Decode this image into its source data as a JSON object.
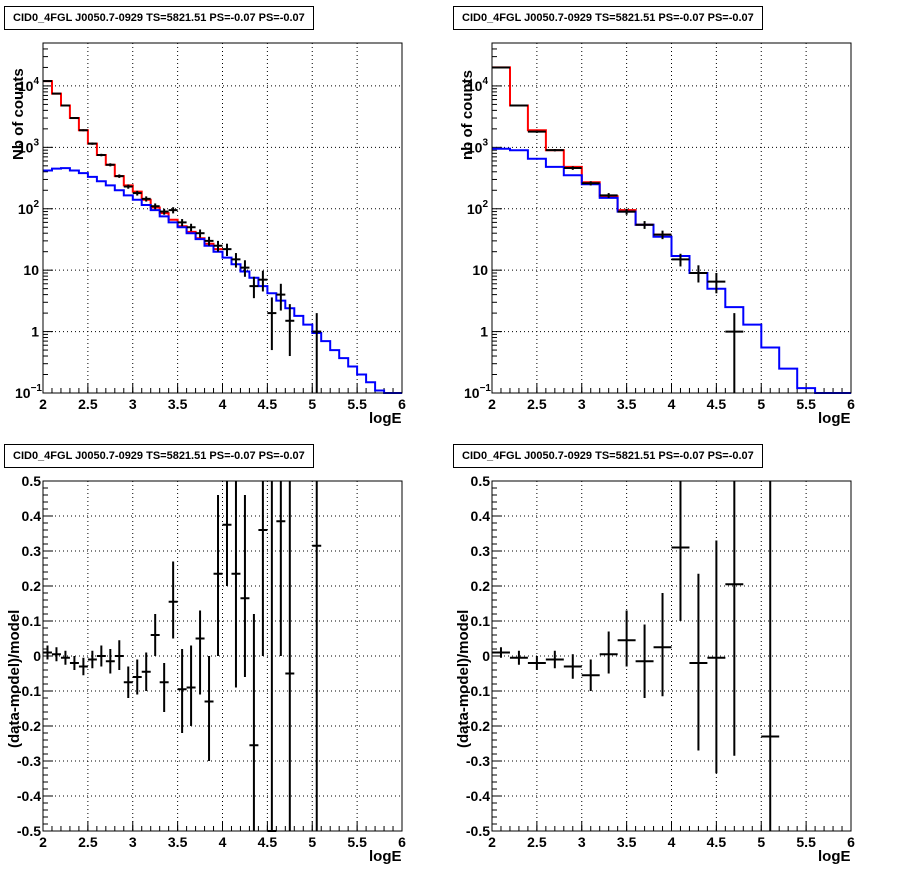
{
  "chart_data": [
    {
      "type": "histogram",
      "title": "CID0_4FGL J0050.7-0929 TS=5821.51 PS=-0.07 PS=-0.07",
      "xlabel": "logE",
      "ylabel": "Nb of counts",
      "xlim": [
        2,
        6
      ],
      "ylim": [
        0.1,
        50000
      ],
      "yscale": "log",
      "grid": true,
      "x_ticks": [
        "2",
        "2.5",
        "3",
        "3.5",
        "4",
        "4.5",
        "5",
        "5.5",
        "6"
      ],
      "y_ticks": [
        {
          "value": 0.1,
          "mantissa": "10",
          "exp": "−1"
        },
        {
          "value": 1,
          "mantissa": "1",
          "exp": ""
        },
        {
          "value": 10,
          "mantissa": "10",
          "exp": ""
        },
        {
          "value": 100,
          "mantissa": "10",
          "exp": "2"
        },
        {
          "value": 1000,
          "mantissa": "10",
          "exp": "3"
        },
        {
          "value": 10000,
          "mantissa": "10",
          "exp": "4"
        }
      ],
      "bin_edges": [
        2.0,
        2.1,
        2.2,
        2.3,
        2.4,
        2.5,
        2.6,
        2.7,
        2.8,
        2.9,
        3.0,
        3.1,
        3.2,
        3.3,
        3.4,
        3.5,
        3.6,
        3.7,
        3.8,
        3.9,
        4.0,
        4.1,
        4.2,
        4.3,
        4.4,
        4.5,
        4.6,
        4.7,
        4.8,
        4.9,
        5.0,
        5.1,
        5.2,
        5.3,
        5.4,
        5.5,
        5.6,
        5.7,
        5.8,
        5.9,
        6.0
      ],
      "series": [
        {
          "color": "#ff0000",
          "values": [
            12000,
            7500,
            4800,
            3000,
            1900,
            1150,
            750,
            520,
            340,
            240,
            190,
            140,
            105,
            85,
            66,
            52,
            42,
            33,
            27,
            22
          ]
        },
        {
          "color": "#0000ff",
          "values": [
            420,
            450,
            460,
            420,
            380,
            330,
            280,
            240,
            200,
            165,
            140,
            115,
            95,
            75,
            60,
            50,
            40,
            32,
            25,
            20,
            16,
            12.5,
            9.5,
            7.5,
            5.5,
            4.2,
            3.2,
            2.4,
            1.8,
            1.3,
            0.95,
            0.7,
            0.5,
            0.37,
            0.27,
            0.2,
            0.15,
            0.11,
            0.1,
            0.1
          ]
        }
      ],
      "points": [
        {
          "x": 2.05,
          "y": 12000,
          "lo": 11800,
          "hi": 12200
        },
        {
          "x": 2.15,
          "y": 7500,
          "lo": 7350,
          "hi": 7650
        },
        {
          "x": 2.25,
          "y": 4800,
          "lo": 4680,
          "hi": 4920
        },
        {
          "x": 2.35,
          "y": 3000,
          "lo": 2900,
          "hi": 3100
        },
        {
          "x": 2.45,
          "y": 1900,
          "lo": 1830,
          "hi": 1970
        },
        {
          "x": 2.55,
          "y": 1150,
          "lo": 1100,
          "hi": 1200
        },
        {
          "x": 2.65,
          "y": 750,
          "lo": 715,
          "hi": 785
        },
        {
          "x": 2.75,
          "y": 520,
          "lo": 490,
          "hi": 550
        },
        {
          "x": 2.85,
          "y": 340,
          "lo": 318,
          "hi": 362
        },
        {
          "x": 2.95,
          "y": 230,
          "lo": 212,
          "hi": 248
        },
        {
          "x": 3.05,
          "y": 180,
          "lo": 164,
          "hi": 196
        },
        {
          "x": 3.15,
          "y": 145,
          "lo": 131,
          "hi": 159
        },
        {
          "x": 3.25,
          "y": 110,
          "lo": 98,
          "hi": 122
        },
        {
          "x": 3.35,
          "y": 90,
          "lo": 80,
          "hi": 100
        },
        {
          "x": 3.45,
          "y": 95,
          "lo": 84,
          "hi": 106
        },
        {
          "x": 3.55,
          "y": 60,
          "lo": 52,
          "hi": 68
        },
        {
          "x": 3.65,
          "y": 50,
          "lo": 43,
          "hi": 57
        },
        {
          "x": 3.75,
          "y": 40,
          "lo": 34,
          "hi": 46
        },
        {
          "x": 3.85,
          "y": 30,
          "lo": 25,
          "hi": 35
        },
        {
          "x": 3.95,
          "y": 25,
          "lo": 20,
          "hi": 30
        },
        {
          "x": 4.05,
          "y": 22,
          "lo": 17,
          "hi": 27
        },
        {
          "x": 4.15,
          "y": 15,
          "lo": 11,
          "hi": 19
        },
        {
          "x": 4.25,
          "y": 11,
          "lo": 7.8,
          "hi": 14.5
        },
        {
          "x": 4.35,
          "y": 5.5,
          "lo": 3.5,
          "hi": 7.8
        },
        {
          "x": 4.45,
          "y": 7,
          "lo": 4.5,
          "hi": 9.8
        },
        {
          "x": 4.55,
          "y": 2,
          "lo": 0.5,
          "hi": 3.6
        },
        {
          "x": 4.65,
          "y": 4,
          "lo": 2.2,
          "hi": 6
        },
        {
          "x": 4.75,
          "y": 1.5,
          "lo": 0.4,
          "hi": 2.8
        },
        {
          "x": 5.05,
          "y": 1,
          "lo": 0.1,
          "hi": 2
        }
      ]
    },
    {
      "type": "histogram",
      "title": "CID0_4FGL J0050.7-0929 TS=5821.51 PS=-0.07 PS=-0.07",
      "xlabel": "logE",
      "ylabel": "nb of counts",
      "xlim": [
        2,
        6
      ],
      "ylim": [
        0.1,
        50000
      ],
      "yscale": "log",
      "grid": true,
      "x_ticks": [
        "2",
        "2.5",
        "3",
        "3.5",
        "4",
        "4.5",
        "5",
        "5.5",
        "6"
      ],
      "y_ticks": [
        {
          "value": 0.1,
          "mantissa": "10",
          "exp": "−1"
        },
        {
          "value": 1,
          "mantissa": "1",
          "exp": ""
        },
        {
          "value": 10,
          "mantissa": "10",
          "exp": ""
        },
        {
          "value": 100,
          "mantissa": "10",
          "exp": "2"
        },
        {
          "value": 1000,
          "mantissa": "10",
          "exp": "3"
        },
        {
          "value": 10000,
          "mantissa": "10",
          "exp": "4"
        }
      ],
      "bin_edges": [
        2.0,
        2.2,
        2.4,
        2.6,
        2.8,
        3.0,
        3.2,
        3.4,
        3.6,
        3.8,
        4.0,
        4.2,
        4.4,
        4.6,
        4.8,
        5.0,
        5.2,
        5.4,
        5.6,
        5.8,
        6.0
      ],
      "series": [
        {
          "color": "#ff0000",
          "values": [
            20000,
            4800,
            1900,
            900,
            480,
            270,
            160,
            95,
            55,
            38
          ]
        },
        {
          "color": "#0000ff",
          "values": [
            950,
            900,
            650,
            480,
            350,
            250,
            150,
            90,
            55,
            35,
            17,
            9,
            5,
            2.5,
            1.3,
            0.55,
            0.25,
            0.12,
            0.1,
            0.1
          ]
        }
      ],
      "points": [
        {
          "x": 2.1,
          "y": 20000,
          "lo": 19700,
          "hi": 20300
        },
        {
          "x": 2.3,
          "y": 4800,
          "lo": 4650,
          "hi": 4950
        },
        {
          "x": 2.5,
          "y": 1800,
          "lo": 1720,
          "hi": 1880
        },
        {
          "x": 2.7,
          "y": 900,
          "lo": 860,
          "hi": 940
        },
        {
          "x": 2.9,
          "y": 460,
          "lo": 430,
          "hi": 490
        },
        {
          "x": 3.1,
          "y": 260,
          "lo": 240,
          "hi": 280
        },
        {
          "x": 3.3,
          "y": 165,
          "lo": 150,
          "hi": 180
        },
        {
          "x": 3.5,
          "y": 90,
          "lo": 80,
          "hi": 100
        },
        {
          "x": 3.7,
          "y": 55,
          "lo": 47,
          "hi": 63
        },
        {
          "x": 3.9,
          "y": 38,
          "lo": 32,
          "hi": 44
        },
        {
          "x": 4.1,
          "y": 15,
          "lo": 11.5,
          "hi": 18.5
        },
        {
          "x": 4.3,
          "y": 9,
          "lo": 6.3,
          "hi": 12
        },
        {
          "x": 4.5,
          "y": 6.5,
          "lo": 4.2,
          "hi": 9
        },
        {
          "x": 4.7,
          "y": 1,
          "lo": 0.1,
          "hi": 2
        }
      ]
    },
    {
      "type": "scatter",
      "title": "CID0_4FGL J0050.7-0929 TS=5821.51 PS=-0.07 PS=-0.07",
      "xlabel": "logE",
      "ylabel": "(data-model)/model",
      "xlim": [
        2,
        6
      ],
      "ylim": [
        -0.5,
        0.5
      ],
      "grid": true,
      "x_ticks": [
        "2",
        "2.5",
        "3",
        "3.5",
        "4",
        "4.5",
        "5",
        "5.5",
        "6"
      ],
      "y_ticks": [
        "-0.5",
        "-0.4",
        "-0.3",
        "-0.2",
        "-0.1",
        "0",
        "0.1",
        "0.2",
        "0.3",
        "0.4",
        "0.5"
      ],
      "bin_width": 0.1,
      "points": [
        {
          "x": 2.05,
          "y": 0.01,
          "lo": -0.01,
          "hi": 0.03
        },
        {
          "x": 2.15,
          "y": 0.005,
          "lo": -0.015,
          "hi": 0.025
        },
        {
          "x": 2.25,
          "y": -0.005,
          "lo": -0.025,
          "hi": 0.015
        },
        {
          "x": 2.35,
          "y": -0.02,
          "lo": -0.04,
          "hi": 0.0
        },
        {
          "x": 2.45,
          "y": -0.03,
          "lo": -0.055,
          "hi": -0.005
        },
        {
          "x": 2.55,
          "y": -0.01,
          "lo": -0.035,
          "hi": 0.015
        },
        {
          "x": 2.65,
          "y": 0.0,
          "lo": -0.03,
          "hi": 0.03
        },
        {
          "x": 2.75,
          "y": -0.015,
          "lo": -0.05,
          "hi": 0.02
        },
        {
          "x": 2.85,
          "y": 0.0,
          "lo": -0.04,
          "hi": 0.045
        },
        {
          "x": 2.95,
          "y": -0.075,
          "lo": -0.12,
          "hi": -0.03
        },
        {
          "x": 3.05,
          "y": -0.06,
          "lo": -0.11,
          "hi": -0.01
        },
        {
          "x": 3.15,
          "y": -0.045,
          "lo": -0.1,
          "hi": 0.01
        },
        {
          "x": 3.25,
          "y": 0.06,
          "lo": 0.0,
          "hi": 0.12
        },
        {
          "x": 3.35,
          "y": -0.075,
          "lo": -0.16,
          "hi": -0.02
        },
        {
          "x": 3.45,
          "y": 0.155,
          "lo": 0.05,
          "hi": 0.27
        },
        {
          "x": 3.55,
          "y": -0.095,
          "lo": -0.22,
          "hi": 0.02
        },
        {
          "x": 3.65,
          "y": -0.09,
          "lo": -0.2,
          "hi": 0.03
        },
        {
          "x": 3.75,
          "y": 0.05,
          "lo": -0.11,
          "hi": 0.13
        },
        {
          "x": 3.85,
          "y": -0.13,
          "lo": -0.3,
          "hi": 0.0
        },
        {
          "x": 3.95,
          "y": 0.235,
          "lo": 0.0,
          "hi": 0.46
        },
        {
          "x": 4.05,
          "y": 0.375,
          "lo": 0.2,
          "hi": 0.5
        },
        {
          "x": 4.15,
          "y": 0.235,
          "lo": -0.09,
          "hi": 0.5
        },
        {
          "x": 4.25,
          "y": 0.165,
          "lo": -0.06,
          "hi": 0.46
        },
        {
          "x": 4.35,
          "y": -0.255,
          "lo": -0.5,
          "hi": 0.12
        },
        {
          "x": 4.45,
          "y": 0.36,
          "lo": 0.0,
          "hi": 0.5
        },
        {
          "x": 4.55,
          "y": -0.5,
          "lo": -0.5,
          "hi": 0.5
        },
        {
          "x": 4.65,
          "y": 0.385,
          "lo": 0.0,
          "hi": 0.5
        },
        {
          "x": 4.75,
          "y": -0.05,
          "lo": -0.5,
          "hi": 0.5
        },
        {
          "x": 5.05,
          "y": 0.315,
          "lo": -0.5,
          "hi": 0.5
        }
      ]
    },
    {
      "type": "scatter",
      "title": "CID0_4FGL J0050.7-0929 TS=5821.51 PS=-0.07 PS=-0.07",
      "xlabel": "logE",
      "ylabel": "(data-model)/model",
      "xlim": [
        2,
        6
      ],
      "ylim": [
        -0.5,
        0.5
      ],
      "grid": true,
      "x_ticks": [
        "2",
        "2.5",
        "3",
        "3.5",
        "4",
        "4.5",
        "5",
        "5.5",
        "6"
      ],
      "y_ticks": [
        "-0.5",
        "-0.4",
        "-0.3",
        "-0.2",
        "-0.1",
        "0",
        "0.1",
        "0.2",
        "0.3",
        "0.4",
        "0.5"
      ],
      "bin_width": 0.2,
      "points": [
        {
          "x": 2.1,
          "y": 0.01,
          "lo": -0.005,
          "hi": 0.025
        },
        {
          "x": 2.3,
          "y": -0.005,
          "lo": -0.025,
          "hi": 0.015
        },
        {
          "x": 2.5,
          "y": -0.02,
          "lo": -0.04,
          "hi": 0.0
        },
        {
          "x": 2.7,
          "y": -0.01,
          "lo": -0.035,
          "hi": 0.015
        },
        {
          "x": 2.9,
          "y": -0.03,
          "lo": -0.065,
          "hi": 0.005
        },
        {
          "x": 3.1,
          "y": -0.055,
          "lo": -0.1,
          "hi": -0.01
        },
        {
          "x": 3.3,
          "y": 0.005,
          "lo": -0.05,
          "hi": 0.07
        },
        {
          "x": 3.5,
          "y": 0.045,
          "lo": -0.03,
          "hi": 0.13
        },
        {
          "x": 3.7,
          "y": -0.015,
          "lo": -0.12,
          "hi": 0.09
        },
        {
          "x": 3.9,
          "y": 0.025,
          "lo": -0.115,
          "hi": 0.18
        },
        {
          "x": 4.1,
          "y": 0.31,
          "lo": 0.1,
          "hi": 0.5
        },
        {
          "x": 4.3,
          "y": -0.02,
          "lo": -0.27,
          "hi": 0.235
        },
        {
          "x": 4.5,
          "y": -0.005,
          "lo": -0.335,
          "hi": 0.33
        },
        {
          "x": 4.7,
          "y": 0.205,
          "lo": -0.285,
          "hi": 0.5
        },
        {
          "x": 5.1,
          "y": -0.23,
          "lo": -0.5,
          "hi": 0.5
        }
      ]
    }
  ]
}
